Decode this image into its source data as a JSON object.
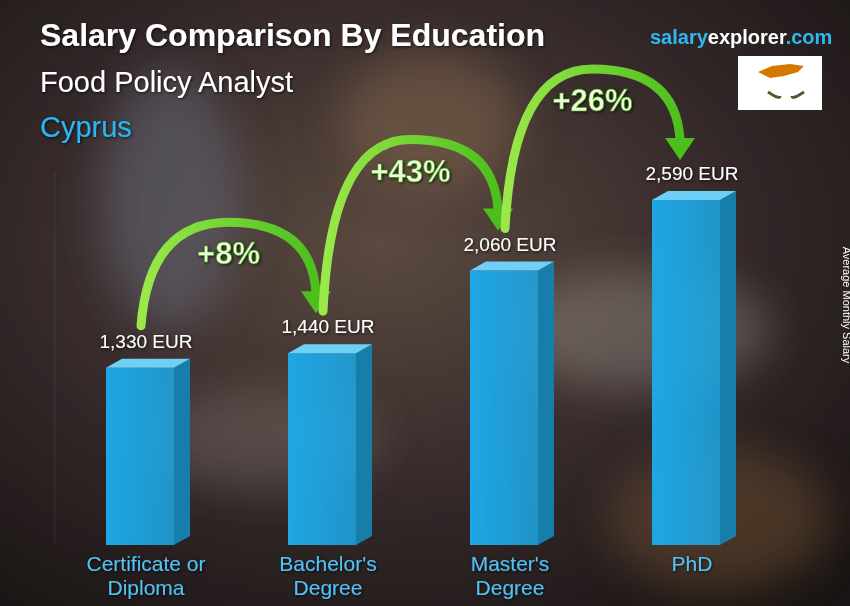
{
  "chart_data": {
    "type": "bar",
    "title": "Salary Comparison By Education",
    "subtitle": "Food Policy Analyst",
    "location": "Cyprus",
    "source": "salaryexplorer.com",
    "ylabel": "Average Monthly Salary",
    "categories": [
      "Certificate or Diploma",
      "Bachelor's Degree",
      "Master's Degree",
      "PhD"
    ],
    "values": [
      1330,
      1440,
      2060,
      2590
    ],
    "value_labels": [
      "1,330 EUR",
      "1,440 EUR",
      "2,060 EUR",
      "2,590 EUR"
    ],
    "annotations": [
      "+8%",
      "+43%",
      "+26%"
    ],
    "color": "#1ea7e4",
    "ylim": [
      0,
      2800
    ],
    "grid": false,
    "data_labels": true,
    "tick_labels": "x"
  }
}
